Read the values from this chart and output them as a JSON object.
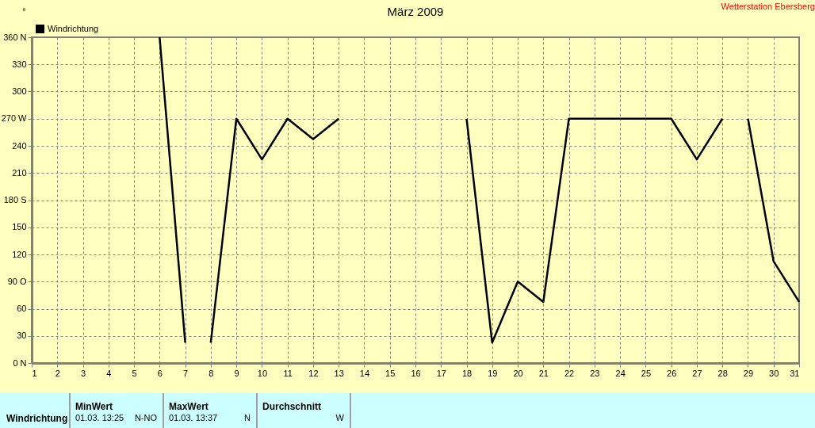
{
  "chart_data": {
    "type": "line",
    "title": "März 2009",
    "ylabel": "°",
    "x": [
      6,
      7,
      7.5,
      8,
      9,
      10,
      11,
      12,
      13,
      14,
      15,
      16,
      17,
      18,
      19,
      20,
      21,
      22,
      23,
      24,
      25,
      26,
      27,
      28,
      28.5,
      29,
      30,
      31
    ],
    "series": [
      {
        "name": "Windrichtung",
        "color": "#000000",
        "values": [
          360,
          22.5,
          null,
          22.5,
          270,
          225,
          270,
          247.5,
          270,
          null,
          null,
          null,
          null,
          270,
          22.5,
          90,
          67.5,
          270,
          270,
          270,
          270,
          270,
          225,
          270,
          null,
          270,
          112.5,
          67.5
        ]
      }
    ],
    "xlim": [
      1,
      31
    ],
    "xticks": [
      1,
      2,
      3,
      4,
      5,
      6,
      7,
      8,
      9,
      10,
      11,
      12,
      13,
      14,
      15,
      16,
      17,
      18,
      19,
      20,
      21,
      22,
      23,
      24,
      25,
      26,
      27,
      28,
      29,
      30,
      31
    ],
    "ylim": [
      0,
      360
    ],
    "yticks": [
      {
        "value": 0,
        "label": "0   N"
      },
      30,
      60,
      {
        "value": 90,
        "label": "90  O"
      },
      120,
      150,
      {
        "value": 180,
        "label": "180 S"
      },
      210,
      240,
      {
        "value": 270,
        "label": "270 W"
      },
      300,
      330,
      {
        "value": 360,
        "label": "360 N"
      }
    ],
    "grid": true,
    "legend": "top left",
    "line_style": "solid",
    "marker": "none",
    "annotations": [
      "Wetterstation Ebersberg",
      "Windrichtung",
      "MinWert",
      "01.03.  13:25",
      "N-NO",
      "MaxWert",
      "01.03.  13:37",
      "N",
      "Durchschnitt",
      "W"
    ]
  }
}
